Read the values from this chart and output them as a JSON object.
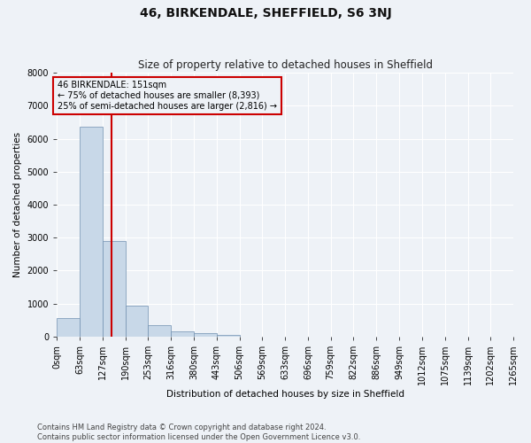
{
  "title": "46, BIRKENDALE, SHEFFIELD, S6 3NJ",
  "subtitle": "Size of property relative to detached houses in Sheffield",
  "xlabel": "Distribution of detached houses by size in Sheffield",
  "ylabel": "Number of detached properties",
  "footer_line1": "Contains HM Land Registry data © Crown copyright and database right 2024.",
  "footer_line2": "Contains public sector information licensed under the Open Government Licence v3.0.",
  "bin_edges": [
    0,
    63,
    127,
    190,
    253,
    316,
    380,
    443,
    506,
    569,
    633,
    696,
    759,
    822,
    886,
    949,
    1012,
    1075,
    1139,
    1202,
    1265
  ],
  "bin_labels": [
    "0sqm",
    "63sqm",
    "127sqm",
    "190sqm",
    "253sqm",
    "316sqm",
    "380sqm",
    "443sqm",
    "506sqm",
    "569sqm",
    "633sqm",
    "696sqm",
    "759sqm",
    "822sqm",
    "886sqm",
    "949sqm",
    "1012sqm",
    "1075sqm",
    "1139sqm",
    "1202sqm",
    "1265sqm"
  ],
  "bar_heights": [
    550,
    6350,
    2900,
    950,
    340,
    160,
    100,
    60,
    0,
    0,
    0,
    0,
    0,
    0,
    0,
    0,
    0,
    0,
    0,
    0
  ],
  "bar_color": "#c8d8e8",
  "bar_edge_color": "#7090b0",
  "property_size": 151,
  "red_line_color": "#cc0000",
  "annotation_line1": "46 BIRKENDALE: 151sqm",
  "annotation_line2": "← 75% of detached houses are smaller (8,393)",
  "annotation_line3": "25% of semi-detached houses are larger (2,816) →",
  "annotation_box_color": "#cc0000",
  "ylim": [
    0,
    8000
  ],
  "yticks": [
    0,
    1000,
    2000,
    3000,
    4000,
    5000,
    6000,
    7000,
    8000
  ],
  "background_color": "#eef2f7",
  "grid_color": "#ffffff",
  "title_fontsize": 10,
  "subtitle_fontsize": 8.5,
  "axis_label_fontsize": 7.5,
  "tick_fontsize": 7,
  "footer_fontsize": 6
}
